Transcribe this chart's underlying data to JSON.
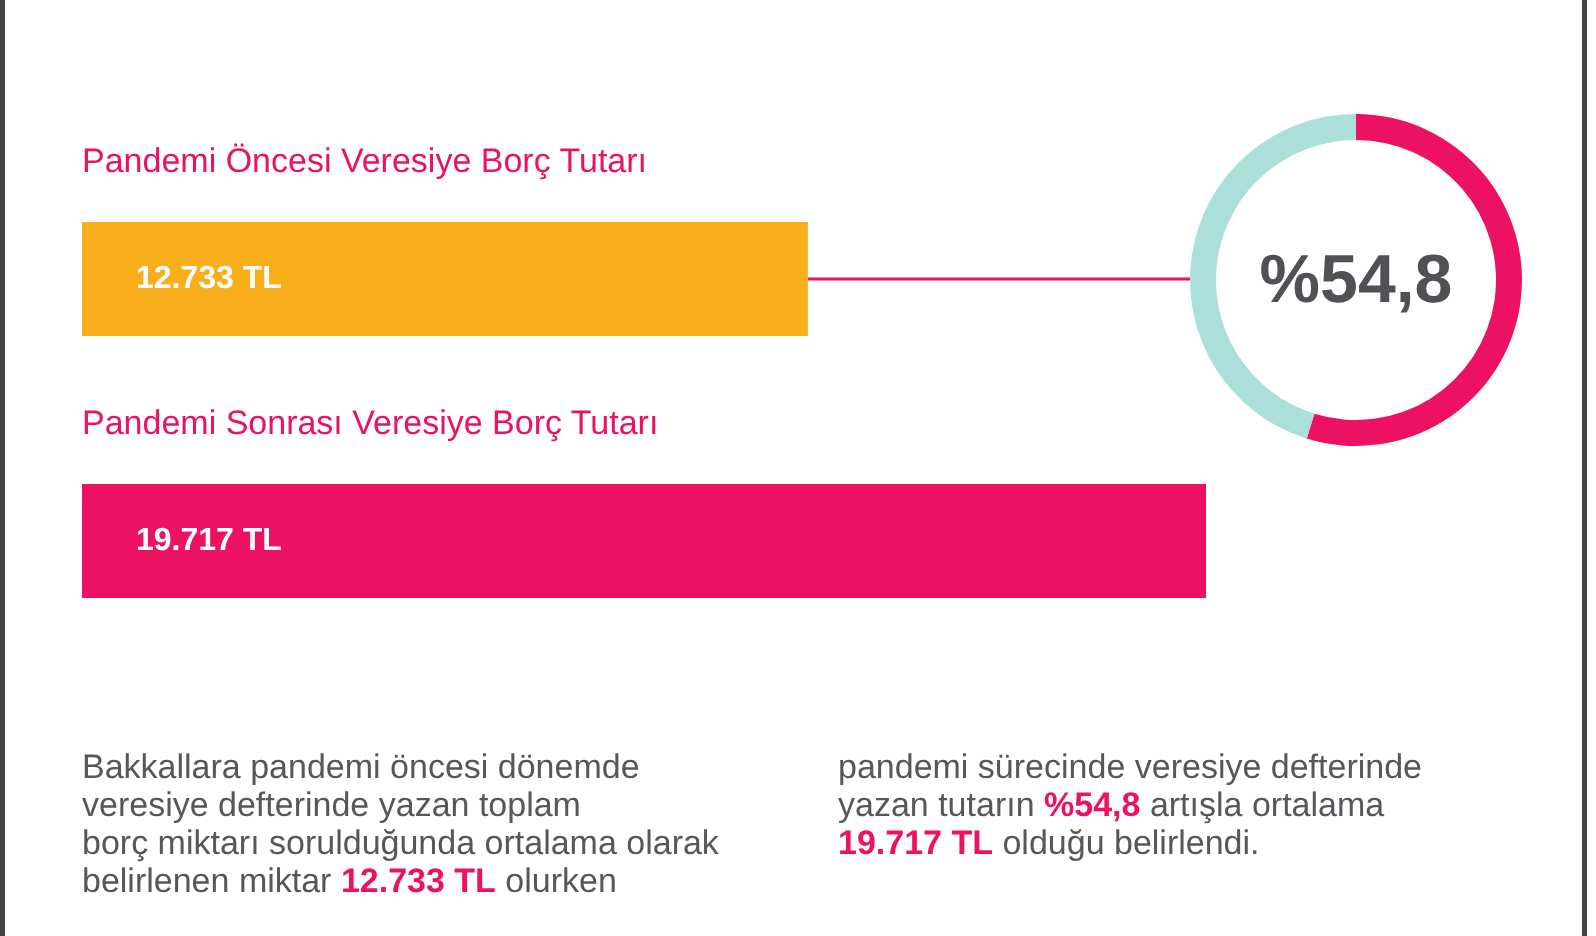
{
  "chart_data": [
    {
      "type": "bar",
      "orientation": "horizontal",
      "categories": [
        "Pandemi Öncesi Veresiye Borç Tutarı",
        "Pandemi Sonrası Veresiye Borç Tutarı"
      ],
      "values": [
        12733,
        19717
      ],
      "colors": [
        "#f9ae1c",
        "#ec1163"
      ],
      "value_labels": [
        "12.733 TL",
        "19.717 TL"
      ],
      "annotations": [
        "Bakkallara pandemi öncesi dönemde",
        "veresiye defterinde yazan toplam",
        "borç miktarı sorulduğunda ortalama olarak",
        "belirlenen miktar 12.733 TL olurken",
        "pandemi sürecinde veresiye defterinde",
        "yazan tutarın %54,8 artışla ortalama",
        "19.717 TL olduğu belirlendi."
      ]
    },
    {
      "type": "donut",
      "categories": [
        null,
        null
      ],
      "values": [
        54.8,
        45.2
      ],
      "colors": [
        "#ec1163",
        "#aadfda"
      ],
      "value_labels": [
        "%54,8",
        null
      ]
    }
  ]
}
